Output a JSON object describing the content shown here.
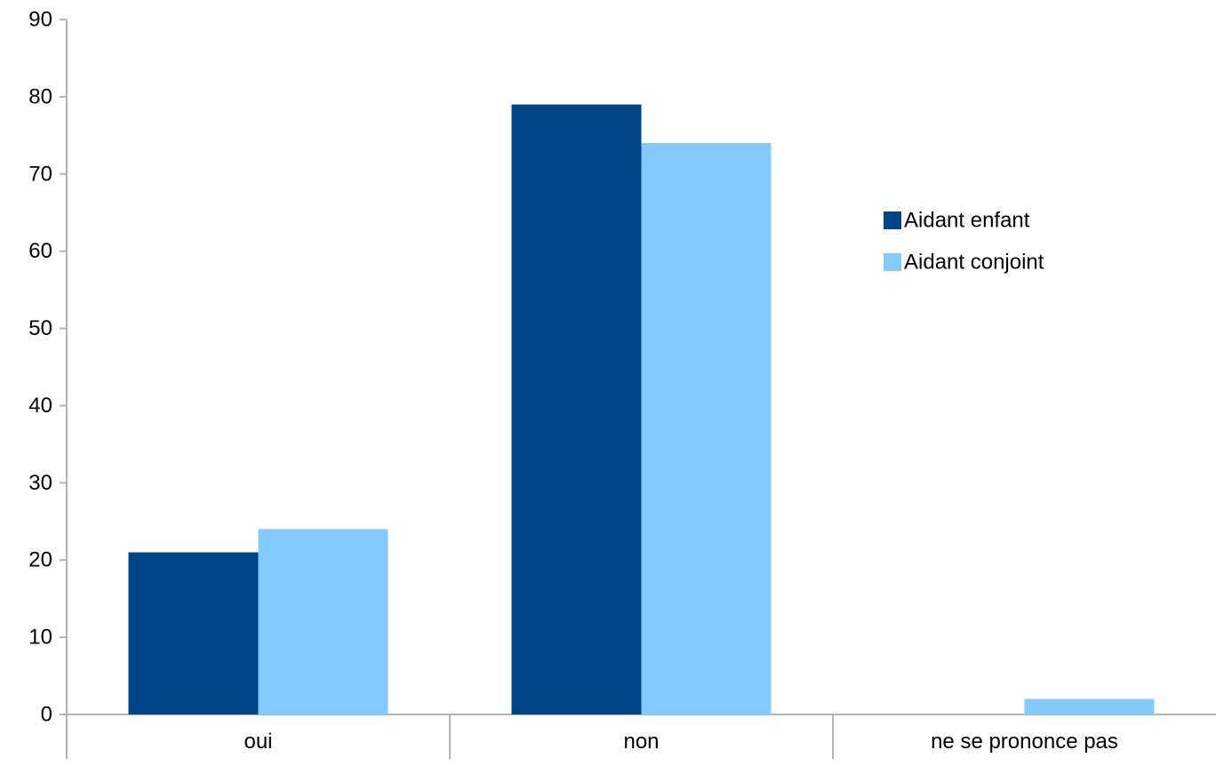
{
  "chart_data": {
    "type": "bar",
    "categories": [
      "oui",
      "non",
      "ne se prononce pas"
    ],
    "series": [
      {
        "name": "Aidant enfant",
        "values": [
          21,
          79,
          0
        ],
        "color": "#004586"
      },
      {
        "name": "Aidant conjoint",
        "values": [
          24,
          74,
          2
        ],
        "color": "#83caff"
      }
    ],
    "ylim": [
      0,
      90
    ],
    "yticks": [
      0,
      10,
      20,
      30,
      40,
      50,
      60,
      70,
      80,
      90
    ],
    "grid": false,
    "legend_position": "right",
    "axis_color": "#b3b3b3"
  }
}
